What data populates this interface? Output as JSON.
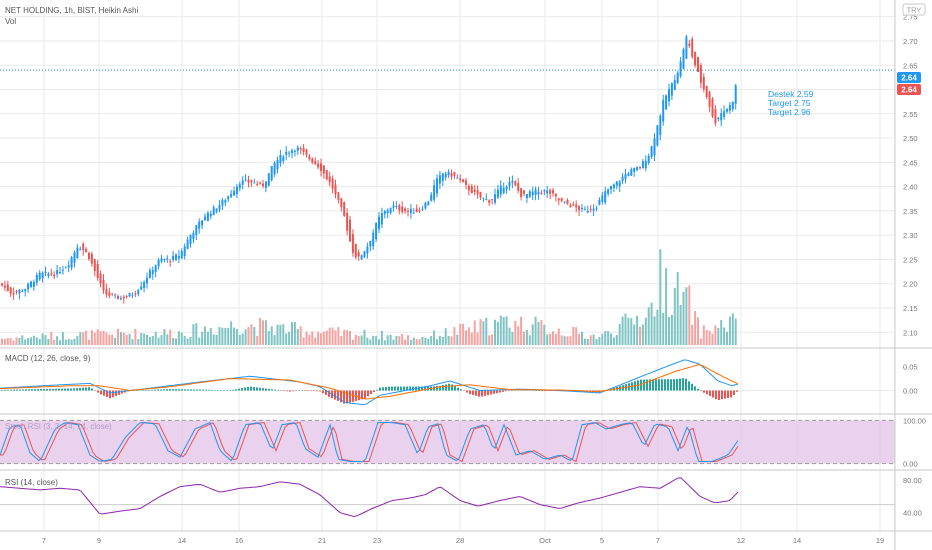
{
  "header": {
    "symbol_line": "NET HOLDING, 1h, BIST, Heikin Ashi",
    "volume_label": "Vol",
    "currency": "TRY"
  },
  "colors": {
    "up": "#2196f3",
    "down": "#ef5350",
    "volume_up": "#7fc4c3",
    "volume_down": "#f5a3a0",
    "macd_line": "#2196f3",
    "signal_line": "#ff6d00",
    "hist_up": "#26a69a",
    "hist_down": "#ef5350",
    "stoch_k": "#2196f3",
    "stoch_d": "#ef5350",
    "stoch_band": "#e1bee7",
    "rsi_line": "#8e24aa",
    "price_line": "#2196f3",
    "grid": "#eaeaea"
  },
  "chart_data": {
    "type": "candlestick",
    "price_axis": {
      "range": [
        2.08,
        2.77
      ],
      "ticks": [
        "2.75",
        "2.70",
        "2.65",
        "2.60",
        "2.55",
        "2.50",
        "2.45",
        "2.40",
        "2.35",
        "2.30",
        "2.25",
        "2.20",
        "2.15",
        "2.10"
      ]
    },
    "last_price_labels": [
      "2.64",
      "2.64"
    ],
    "last_price": 2.64,
    "x_ticks": [
      "7",
      "9",
      "14",
      "16",
      "21",
      "23",
      "28",
      "Oct",
      "5",
      "7",
      "12",
      "14",
      "19"
    ],
    "annotations": [
      "Destek 2.59",
      "Target 2.75",
      "Target 2.96"
    ],
    "price_path": [
      [
        0,
        2.2
      ],
      [
        12,
        2.18
      ],
      [
        25,
        2.19
      ],
      [
        40,
        2.22
      ],
      [
        55,
        2.22
      ],
      [
        68,
        2.24
      ],
      [
        78,
        2.28
      ],
      [
        88,
        2.26
      ],
      [
        96,
        2.22
      ],
      [
        104,
        2.18
      ],
      [
        120,
        2.17
      ],
      [
        134,
        2.18
      ],
      [
        142,
        2.2
      ],
      [
        152,
        2.23
      ],
      [
        160,
        2.25
      ],
      [
        170,
        2.25
      ],
      [
        180,
        2.26
      ],
      [
        190,
        2.3
      ],
      [
        205,
        2.34
      ],
      [
        218,
        2.36
      ],
      [
        228,
        2.38
      ],
      [
        240,
        2.41
      ],
      [
        252,
        2.41
      ],
      [
        262,
        2.4
      ],
      [
        275,
        2.45
      ],
      [
        285,
        2.47
      ],
      [
        297,
        2.48
      ],
      [
        308,
        2.46
      ],
      [
        320,
        2.44
      ],
      [
        332,
        2.4
      ],
      [
        344,
        2.34
      ],
      [
        352,
        2.27
      ],
      [
        358,
        2.25
      ],
      [
        368,
        2.28
      ],
      [
        380,
        2.34
      ],
      [
        392,
        2.36
      ],
      [
        405,
        2.35
      ],
      [
        418,
        2.35
      ],
      [
        428,
        2.37
      ],
      [
        436,
        2.41
      ],
      [
        444,
        2.43
      ],
      [
        456,
        2.42
      ],
      [
        466,
        2.4
      ],
      [
        478,
        2.38
      ],
      [
        490,
        2.37
      ],
      [
        502,
        2.4
      ],
      [
        512,
        2.41
      ],
      [
        522,
        2.38
      ],
      [
        535,
        2.39
      ],
      [
        548,
        2.39
      ],
      [
        560,
        2.37
      ],
      [
        572,
        2.36
      ],
      [
        584,
        2.35
      ],
      [
        596,
        2.36
      ],
      [
        606,
        2.39
      ],
      [
        618,
        2.41
      ],
      [
        628,
        2.43
      ],
      [
        640,
        2.44
      ],
      [
        650,
        2.47
      ],
      [
        658,
        2.53
      ],
      [
        664,
        2.58
      ],
      [
        672,
        2.61
      ],
      [
        680,
        2.65
      ],
      [
        686,
        2.71
      ],
      [
        692,
        2.67
      ],
      [
        700,
        2.62
      ],
      [
        708,
        2.58
      ],
      [
        714,
        2.53
      ],
      [
        720,
        2.55
      ],
      [
        726,
        2.56
      ],
      [
        732,
        2.57
      ],
      [
        738,
        2.63
      ]
    ],
    "volume_path": [
      [
        0,
        9
      ],
      [
        80,
        14
      ],
      [
        180,
        17
      ],
      [
        240,
        28
      ],
      [
        320,
        18
      ],
      [
        420,
        10
      ],
      [
        510,
        32
      ],
      [
        600,
        11
      ],
      [
        652,
        48
      ],
      [
        660,
        90
      ],
      [
        690,
        55
      ],
      [
        700,
        18
      ],
      [
        736,
        32
      ]
    ],
    "macd_axis": {
      "ticks": [
        "0.05",
        "0.00"
      ],
      "range": [
        -0.045,
        0.085
      ]
    },
    "macd_path": [
      [
        0,
        0.005
      ],
      [
        60,
        0.012
      ],
      [
        90,
        0.015
      ],
      [
        110,
        -0.005
      ],
      [
        150,
        0.005
      ],
      [
        200,
        0.018
      ],
      [
        250,
        0.03
      ],
      [
        300,
        0.018
      ],
      [
        320,
        0.008
      ],
      [
        345,
        -0.025
      ],
      [
        365,
        -0.03
      ],
      [
        380,
        -0.01
      ],
      [
        430,
        0.01
      ],
      [
        450,
        0.02
      ],
      [
        480,
        0.0
      ],
      [
        520,
        0.003
      ],
      [
        560,
        0.0
      ],
      [
        600,
        -0.005
      ],
      [
        630,
        0.02
      ],
      [
        660,
        0.045
      ],
      [
        685,
        0.065
      ],
      [
        700,
        0.055
      ],
      [
        718,
        0.02
      ],
      [
        732,
        0.01
      ],
      [
        740,
        0.015
      ]
    ],
    "signal_path": [
      [
        0,
        0.004
      ],
      [
        70,
        0.01
      ],
      [
        100,
        0.01
      ],
      [
        130,
        0.0
      ],
      [
        170,
        0.008
      ],
      [
        230,
        0.025
      ],
      [
        290,
        0.022
      ],
      [
        330,
        0.005
      ],
      [
        365,
        -0.018
      ],
      [
        390,
        -0.012
      ],
      [
        440,
        0.008
      ],
      [
        470,
        0.012
      ],
      [
        510,
        0.002
      ],
      [
        560,
        0.001
      ],
      [
        600,
        -0.002
      ],
      [
        640,
        0.012
      ],
      [
        675,
        0.04
      ],
      [
        700,
        0.055
      ],
      [
        722,
        0.03
      ],
      [
        740,
        0.012
      ]
    ],
    "stoch_axis": {
      "ticks": [
        "100.00",
        "0.00"
      ],
      "range": [
        -10,
        110
      ]
    },
    "stoch_path": [
      [
        0,
        20
      ],
      [
        10,
        85
      ],
      [
        20,
        90
      ],
      [
        30,
        25
      ],
      [
        40,
        5
      ],
      [
        55,
        80
      ],
      [
        65,
        95
      ],
      [
        78,
        90
      ],
      [
        90,
        20
      ],
      [
        100,
        5
      ],
      [
        112,
        10
      ],
      [
        125,
        60
      ],
      [
        140,
        95
      ],
      [
        155,
        92
      ],
      [
        168,
        30
      ],
      [
        180,
        15
      ],
      [
        195,
        80
      ],
      [
        210,
        95
      ],
      [
        220,
        30
      ],
      [
        232,
        5
      ],
      [
        245,
        90
      ],
      [
        260,
        95
      ],
      [
        272,
        30
      ],
      [
        282,
        90
      ],
      [
        296,
        95
      ],
      [
        305,
        35
      ],
      [
        318,
        15
      ],
      [
        330,
        90
      ],
      [
        338,
        10
      ],
      [
        350,
        5
      ],
      [
        365,
        5
      ],
      [
        378,
        95
      ],
      [
        392,
        95
      ],
      [
        405,
        90
      ],
      [
        418,
        20
      ],
      [
        428,
        85
      ],
      [
        438,
        92
      ],
      [
        446,
        20
      ],
      [
        458,
        5
      ],
      [
        470,
        80
      ],
      [
        484,
        90
      ],
      [
        494,
        30
      ],
      [
        504,
        90
      ],
      [
        516,
        20
      ],
      [
        530,
        30
      ],
      [
        545,
        10
      ],
      [
        560,
        20
      ],
      [
        572,
        5
      ],
      [
        582,
        90
      ],
      [
        595,
        95
      ],
      [
        606,
        80
      ],
      [
        620,
        90
      ],
      [
        632,
        95
      ],
      [
        644,
        40
      ],
      [
        655,
        92
      ],
      [
        668,
        85
      ],
      [
        678,
        30
      ],
      [
        688,
        90
      ],
      [
        698,
        5
      ],
      [
        712,
        5
      ],
      [
        728,
        20
      ],
      [
        740,
        60
      ]
    ],
    "rsi_axis": {
      "ticks": [
        "80.00",
        "40.00"
      ],
      "range": [
        20,
        90
      ]
    },
    "rsi_path": [
      [
        0,
        72
      ],
      [
        20,
        70
      ],
      [
        40,
        68
      ],
      [
        60,
        70
      ],
      [
        80,
        68
      ],
      [
        100,
        38
      ],
      [
        120,
        42
      ],
      [
        140,
        45
      ],
      [
        160,
        60
      ],
      [
        180,
        72
      ],
      [
        200,
        75
      ],
      [
        220,
        65
      ],
      [
        240,
        70
      ],
      [
        260,
        72
      ],
      [
        280,
        78
      ],
      [
        300,
        75
      ],
      [
        320,
        62
      ],
      [
        340,
        40
      ],
      [
        355,
        35
      ],
      [
        372,
        45
      ],
      [
        392,
        55
      ],
      [
        410,
        58
      ],
      [
        425,
        62
      ],
      [
        440,
        72
      ],
      [
        460,
        55
      ],
      [
        478,
        48
      ],
      [
        500,
        55
      ],
      [
        520,
        60
      ],
      [
        540,
        50
      ],
      [
        560,
        45
      ],
      [
        578,
        52
      ],
      [
        600,
        58
      ],
      [
        620,
        65
      ],
      [
        640,
        72
      ],
      [
        660,
        70
      ],
      [
        680,
        84
      ],
      [
        700,
        60
      ],
      [
        715,
        52
      ],
      [
        730,
        55
      ],
      [
        740,
        68
      ]
    ]
  }
}
